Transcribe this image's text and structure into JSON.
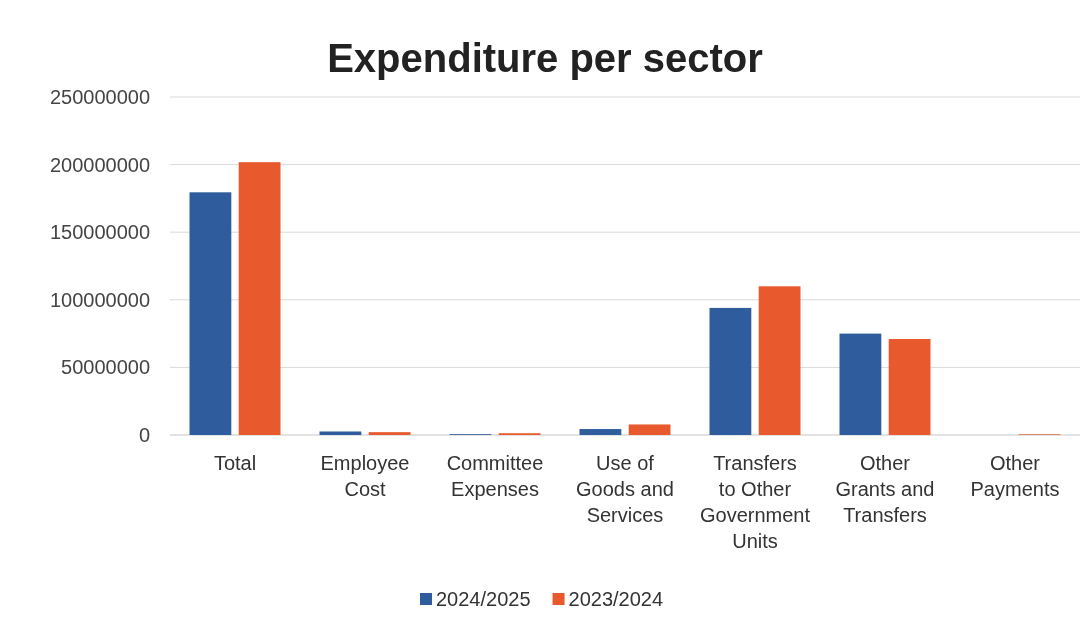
{
  "chart_data": {
    "type": "bar",
    "title": "Expenditure per sector",
    "categories": [
      "Total",
      "Employee Cost",
      "Committee Expenses",
      "Use of Goods and Services",
      "Transfers to Other Government Units",
      "Other Grants and Transfers",
      "Other Payments"
    ],
    "series": [
      {
        "name": "2024/2025",
        "color": "#2e5c9c",
        "values": [
          179500000,
          2600000,
          600000,
          4400000,
          94000000,
          75000000,
          0
        ]
      },
      {
        "name": "2023/2024",
        "color": "#e85a2e",
        "values": [
          201800000,
          2100000,
          1300000,
          7800000,
          110000000,
          71000000,
          500000
        ]
      }
    ],
    "ylim": [
      0,
      250000000
    ],
    "yticks": [
      0,
      50000000,
      100000000,
      150000000,
      200000000,
      250000000
    ],
    "grid": "y",
    "legend": "bottom"
  }
}
